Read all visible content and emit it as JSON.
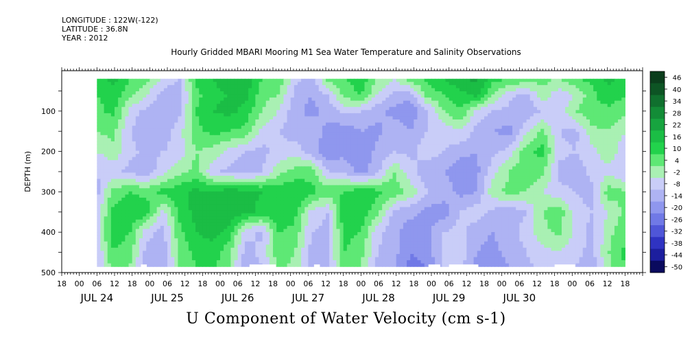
{
  "header": {
    "longitude": "LONGITUDE : 122W(-122)",
    "latitude": "LATITUDE : 36.8N",
    "year": "YEAR : 2012"
  },
  "chart_data": {
    "type": "heatmap",
    "title": "Hourly Gridded MBARI Mooring M1 Sea Water Temperature and Salinity Observations",
    "xlabel": "U Component of Water Velocity (cm s-1)",
    "ylabel": "DEPTH (m)",
    "y_range": [
      500,
      0
    ],
    "y_ticks": [
      100,
      200,
      300,
      400,
      500
    ],
    "y_tick_labels": [
      "100",
      "200",
      "300",
      "400",
      "500"
    ],
    "x_day_labels": [
      "JUL 24",
      "JUL 25",
      "JUL 26",
      "JUL 27",
      "JUL 28",
      "JUL 29",
      "JUL 30"
    ],
    "x_hour_labels": [
      "00",
      "06",
      "12",
      "18"
    ],
    "colorbar_levels": [
      "46",
      "40",
      "34",
      "28",
      "22",
      "16",
      "10",
      "4",
      "-2",
      "-8",
      "-14",
      "-20",
      "-26",
      "-32",
      "-38",
      "-44",
      "-50"
    ],
    "colorbar_colors": [
      "#0b3d1c",
      "#0d5424",
      "#10702e",
      "#138c37",
      "#17a43f",
      "#1bbd45",
      "#22d24c",
      "#5ee875",
      "#a9f0b3",
      "#c9cdf8",
      "#aeb3f3",
      "#8f97ee",
      "#7079e6",
      "#4f56d8",
      "#2f33c2",
      "#1c1e9e",
      "#0a0a5e"
    ],
    "data_start_hour": 6,
    "data_end_hour": 186,
    "data_top_depth": 20,
    "data_bottom_depth": 485,
    "grid_on": false,
    "series": [
      {
        "depth_m": 20,
        "u_cm_s": [
          14,
          18,
          10,
          6,
          -4,
          -8,
          12,
          16,
          20,
          22,
          10,
          8,
          -6,
          -10,
          6,
          10,
          14,
          4,
          -2,
          8,
          12,
          16,
          20,
          24,
          12,
          10,
          8,
          6,
          4,
          10,
          12,
          18,
          14
        ]
      },
      {
        "depth_m": 60,
        "u_cm_s": [
          10,
          14,
          6,
          -2,
          -10,
          -12,
          8,
          14,
          16,
          18,
          6,
          4,
          -10,
          -14,
          -8,
          6,
          10,
          -2,
          -10,
          -12,
          6,
          10,
          14,
          18,
          4,
          -6,
          -10,
          2,
          -6,
          -2,
          8,
          14,
          10
        ]
      },
      {
        "depth_m": 100,
        "u_cm_s": [
          8,
          12,
          -4,
          -10,
          -14,
          -10,
          10,
          16,
          18,
          14,
          4,
          -2,
          -12,
          -16,
          -12,
          -6,
          -8,
          -12,
          -16,
          -18,
          -10,
          4,
          10,
          -4,
          -8,
          -10,
          -12,
          -8,
          -6,
          4,
          10,
          8,
          6
        ]
      },
      {
        "depth_m": 150,
        "u_cm_s": [
          4,
          6,
          -8,
          -14,
          -12,
          -4,
          8,
          12,
          10,
          8,
          -4,
          -8,
          -12,
          -10,
          -16,
          -18,
          -14,
          -16,
          -10,
          -14,
          -8,
          -6,
          -2,
          -10,
          -14,
          -16,
          -4,
          6,
          -8,
          -10,
          2,
          4,
          -2
        ]
      },
      {
        "depth_m": 200,
        "u_cm_s": [
          -2,
          2,
          -6,
          -10,
          -8,
          -6,
          4,
          2,
          -4,
          -8,
          -10,
          -6,
          -4,
          -12,
          -18,
          -16,
          -20,
          -12,
          -8,
          -10,
          -4,
          -8,
          -12,
          -14,
          -10,
          -6,
          8,
          12,
          -6,
          -8,
          -4,
          2,
          -6
        ]
      },
      {
        "depth_m": 250,
        "u_cm_s": [
          -8,
          -6,
          -10,
          -12,
          -4,
          2,
          6,
          -6,
          -10,
          -12,
          -8,
          2,
          6,
          8,
          -8,
          -10,
          -16,
          -10,
          4,
          -6,
          -12,
          -14,
          -18,
          -16,
          -4,
          4,
          10,
          6,
          -10,
          -12,
          -6,
          -4,
          -8
        ]
      },
      {
        "depth_m": 300,
        "u_cm_s": [
          -10,
          6,
          10,
          8,
          12,
          14,
          18,
          16,
          20,
          18,
          16,
          14,
          16,
          12,
          8,
          10,
          14,
          12,
          8,
          2,
          -8,
          -10,
          -16,
          -14,
          2,
          6,
          4,
          -2,
          -6,
          -8,
          -10,
          8,
          4
        ]
      },
      {
        "depth_m": 350,
        "u_cm_s": [
          -6,
          12,
          16,
          14,
          -4,
          12,
          18,
          20,
          22,
          18,
          14,
          16,
          12,
          -4,
          -8,
          16,
          14,
          6,
          -10,
          -12,
          -16,
          -18,
          -8,
          -4,
          -10,
          -12,
          -8,
          4,
          8,
          -6,
          -8,
          -2,
          6
        ]
      },
      {
        "depth_m": 400,
        "u_cm_s": [
          -4,
          14,
          10,
          -6,
          -10,
          8,
          16,
          18,
          14,
          -6,
          -10,
          10,
          8,
          -8,
          -10,
          12,
          10,
          -6,
          -12,
          -18,
          -16,
          -8,
          -6,
          -12,
          -14,
          -10,
          -6,
          2,
          6,
          -4,
          -10,
          2,
          8
        ]
      },
      {
        "depth_m": 450,
        "u_cm_s": [
          -8,
          10,
          6,
          -10,
          -12,
          6,
          12,
          14,
          6,
          -10,
          -6,
          8,
          4,
          -10,
          -8,
          10,
          6,
          -8,
          -12,
          -20,
          -18,
          -6,
          -4,
          -14,
          -16,
          -12,
          -8,
          -4,
          -2,
          -6,
          -10,
          4,
          12
        ]
      },
      {
        "depth_m": 485,
        "u_cm_s": [
          -10,
          8,
          4,
          -12,
          -14,
          4,
          10,
          12,
          4,
          -12,
          -8,
          6,
          2,
          -12,
          -10,
          8,
          4,
          -10,
          -14,
          -22,
          -20,
          -8,
          -6,
          -16,
          -18,
          -14,
          -10,
          -6,
          -4,
          -8,
          -12,
          2,
          10
        ]
      }
    ],
    "x_hours_for_series": [
      6,
      11.6,
      17.3,
      22.9,
      28.5,
      34.1,
      39.8,
      45.4,
      51,
      56.6,
      62.3,
      67.9,
      73.5,
      79.1,
      84.8,
      90.4,
      96,
      101.6,
      107.3,
      112.9,
      118.5,
      124.1,
      129.8,
      135.4,
      141,
      146.6,
      152.3,
      157.9,
      163.5,
      169.1,
      174.8,
      180.4,
      186
    ],
    "missing_segments": [
      {
        "start_hour": 21,
        "end_hour": 23
      },
      {
        "start_hour": 58,
        "end_hour": 67
      },
      {
        "start_hour": 80,
        "end_hour": 82
      },
      {
        "start_hour": 119,
        "end_hour": 123
      },
      {
        "start_hour": 126,
        "end_hour": 136
      },
      {
        "start_hour": 162,
        "end_hour": 169
      }
    ]
  }
}
